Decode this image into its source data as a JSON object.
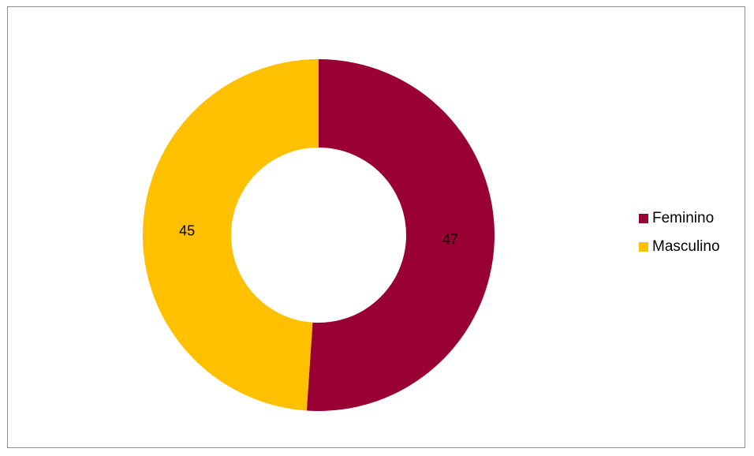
{
  "chart_data": {
    "type": "pie",
    "variant": "donut",
    "categories": [
      "Feminino",
      "Masculino"
    ],
    "values": [
      47,
      45
    ],
    "colors": [
      "#990033",
      "#FFC000"
    ],
    "data_labels": [
      "47",
      "45"
    ],
    "title": "",
    "legend": {
      "placement": "right",
      "entries": [
        "Feminino",
        "Masculino"
      ]
    },
    "start_angle_deg": 0,
    "direction": "clockwise"
  }
}
